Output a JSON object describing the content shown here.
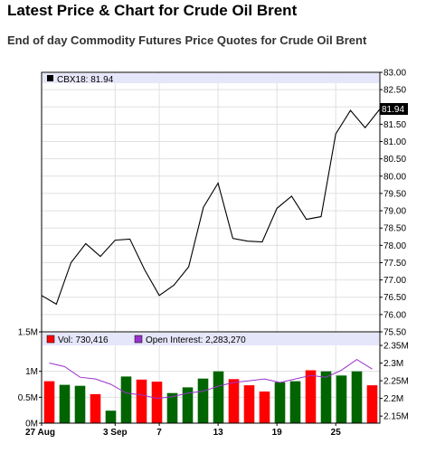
{
  "page": {
    "title": "Latest Price & Chart for Crude Oil Brent",
    "subtitle": "End of day Commodity Futures Price Quotes for Crude Oil Brent"
  },
  "chart_data": [
    {
      "type": "line",
      "legend": {
        "symbol": "CBX18",
        "last": "81.94",
        "label": "CBX18: 81.94"
      },
      "last_value_label": "81.94",
      "x_labels": [
        "27 Aug",
        "3 Sep",
        "7",
        "13",
        "19",
        "25"
      ],
      "values": [
        76.55,
        76.3,
        77.5,
        78.05,
        77.68,
        78.15,
        78.18,
        77.3,
        76.55,
        76.85,
        77.38,
        79.1,
        79.8,
        78.2,
        78.12,
        78.1,
        79.07,
        79.42,
        78.75,
        78.83,
        81.22,
        81.9,
        81.4,
        81.94
      ],
      "ylim": [
        75.5,
        83.0
      ],
      "y_ticks": [
        "75.50",
        "76.00",
        "76.50",
        "77.00",
        "77.50",
        "78.00",
        "78.50",
        "79.00",
        "79.50",
        "80.00",
        "80.50",
        "81.00",
        "81.50",
        "82.00",
        "82.50",
        "83.00"
      ],
      "grid": true,
      "colors": {
        "line": "#000000",
        "legend_bg": "#e6e6fa"
      }
    },
    {
      "type": "bar",
      "legend": {
        "volume_label": "Vol: 730,416",
        "oi_label": "Open Interest: 2,283,270"
      },
      "volume_values": [
        0.81,
        0.74,
        0.72,
        0.56,
        0.24,
        0.9,
        0.84,
        0.8,
        0.58,
        0.69,
        0.86,
        1.0,
        0.85,
        0.73,
        0.61,
        0.79,
        0.81,
        1.02,
        1.0,
        0.92,
        1.0,
        0.73
      ],
      "volume_colors": [
        "r",
        "g",
        "g",
        "r",
        "g",
        "g",
        "r",
        "r",
        "g",
        "g",
        "g",
        "g",
        "r",
        "r",
        "r",
        "g",
        "g",
        "r",
        "g",
        "g",
        "g",
        "r"
      ],
      "open_interest_values": [
        2.3,
        2.29,
        2.26,
        2.255,
        2.24,
        2.215,
        2.21,
        2.2,
        2.205,
        2.215,
        2.22,
        2.235,
        2.245,
        2.25,
        2.255,
        2.245,
        2.255,
        2.265,
        2.26,
        2.28,
        2.31,
        2.283
      ],
      "left_ticks": [
        "0M",
        "0.5M",
        "1M",
        "1.5M"
      ],
      "left_ylim": [
        0,
        1.5
      ],
      "right_ticks": [
        "2.15M",
        "2.2M",
        "2.25M",
        "2.3M",
        "2.35M"
      ],
      "right_ylim": [
        2.13,
        2.35
      ],
      "colors": {
        "up": "#006400",
        "down": "#ff0000",
        "open_interest": "#9932cc",
        "legend_bg": "#e6e6fa"
      }
    }
  ]
}
